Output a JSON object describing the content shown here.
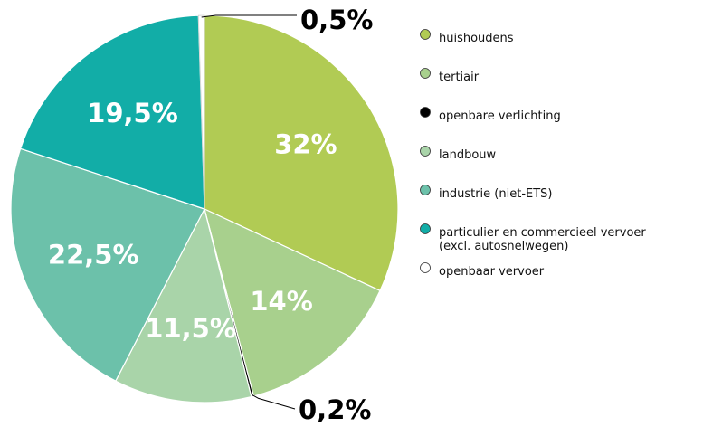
{
  "chart_data": {
    "type": "pie",
    "title": "",
    "legend": "right",
    "slices": [
      {
        "name": "huishoudens",
        "value": 32,
        "label": "32%",
        "color": "#b1cb54",
        "label_color": "#ffffff"
      },
      {
        "name": "tertiair",
        "value": 14,
        "label": "14%",
        "color": "#a8d08d",
        "label_color": "#ffffff"
      },
      {
        "name": "openbare verlichting",
        "value": 0.2,
        "label": "0,2%",
        "color": "#000000",
        "label_color": "#000000"
      },
      {
        "name": "landbouw",
        "value": 11.5,
        "label": "11,5%",
        "color": "#a9d4a9",
        "label_color": "#ffffff"
      },
      {
        "name": "industrie (niet-ETS)",
        "value": 22.5,
        "label": "22,5%",
        "color": "#6cc1aa",
        "label_color": "#ffffff"
      },
      {
        "name": "particulier en commercieel vervoer (excl. autosnelwegen)",
        "value": 19.5,
        "label": "19,5%",
        "color": "#12ada7",
        "label_color": "#ffffff"
      },
      {
        "name": "openbaar vervoer",
        "value": 0.5,
        "label": "0,5%",
        "color": "#ffffff",
        "label_color": "#000000"
      }
    ],
    "legend_entries": [
      {
        "lines": [
          "huishoudens"
        ],
        "color": "#b1cb54"
      },
      {
        "lines": [
          "tertiair"
        ],
        "color": "#a8d08d"
      },
      {
        "lines": [
          "openbare verlichting"
        ],
        "color": "#000000"
      },
      {
        "lines": [
          "landbouw"
        ],
        "color": "#a9d4a9"
      },
      {
        "lines": [
          "industrie (niet-ETS)"
        ],
        "color": "#6cc1aa"
      },
      {
        "lines": [
          "particulier en commercieel vervoer",
          "(excl. autosnelwegen)"
        ],
        "color": "#12ada7"
      },
      {
        "lines": [
          "openbaar vervoer"
        ],
        "color": "#ffffff"
      }
    ]
  }
}
